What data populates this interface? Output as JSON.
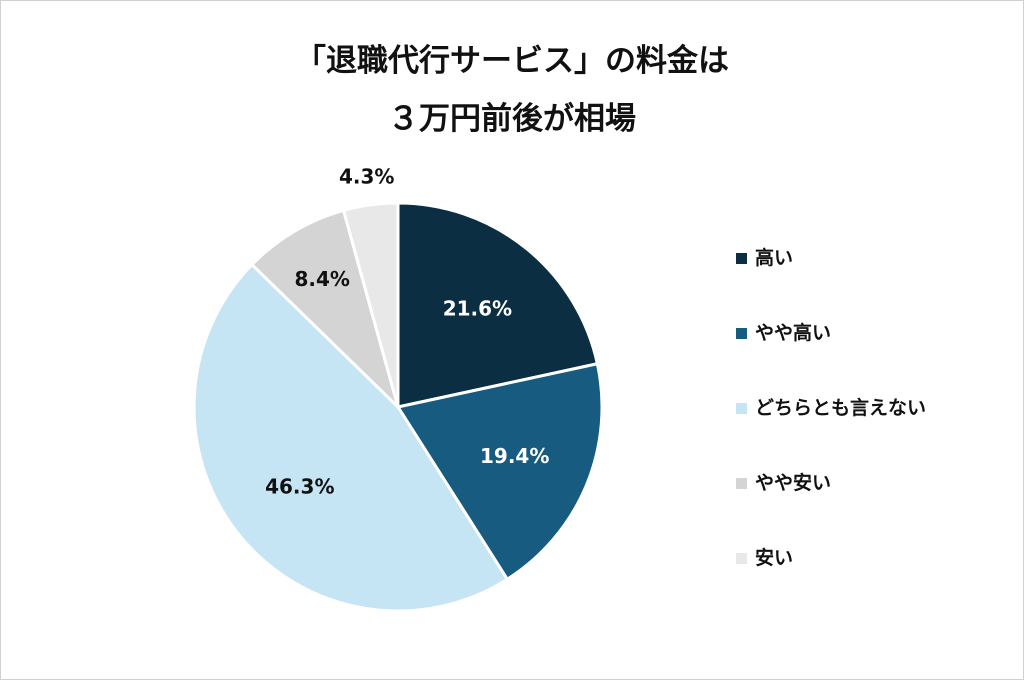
{
  "chart_data": {
    "type": "pie",
    "title_lines": [
      "「退職代行サービス」の料金は",
      "３万円前後が相場"
    ],
    "categories": [
      "高い",
      "やや高い",
      "どちらとも言えない",
      "やや安い",
      "安い"
    ],
    "values": [
      21.6,
      19.4,
      46.3,
      8.4,
      4.3
    ],
    "value_labels": [
      "21.6%",
      "19.4%",
      "46.3%",
      "8.4%",
      "4.3%"
    ],
    "colors": [
      "#0c2e42",
      "#175c80",
      "#c5e5f5",
      "#d4d4d4",
      "#e8e8e8"
    ],
    "label_colors": [
      "#ffffff",
      "#ffffff",
      "#111111",
      "#111111",
      "#111111"
    ],
    "start": "12 o'clock",
    "direction": "clockwise",
    "legend_position": "right"
  }
}
